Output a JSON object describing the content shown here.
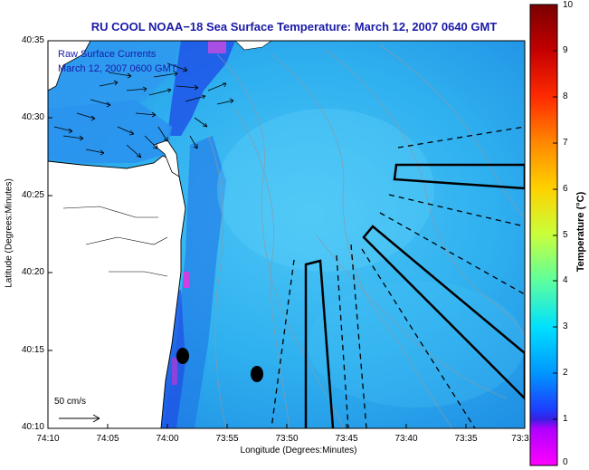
{
  "title": "RU COOL  NOAA−18  Sea Surface Temperature:  March 12, 2007 0640 GMT",
  "axes": {
    "ylabel": "Latitude (Degrees:Minutes)",
    "xlabel": "Longitude (Degrees:Minutes)",
    "yticks": [
      "40:35",
      "40:30",
      "40:25",
      "40:20",
      "40:15",
      "40:10"
    ],
    "xticks": [
      "74:10",
      "74:05",
      "74:00",
      "73:55",
      "73:50",
      "73:45",
      "73:40",
      "73:35",
      "73:3"
    ]
  },
  "colorbar": {
    "label": "Temperature (°C)",
    "ticks": [
      "10",
      "9",
      "8",
      "7",
      "6",
      "5",
      "4",
      "3",
      "2",
      "1",
      "0"
    ],
    "colors": [
      "#7a0000",
      "#c40000",
      "#ff2a00",
      "#ff8800",
      "#ffd200",
      "#c8ff3c",
      "#5cff9e",
      "#00e0ff",
      "#0096ff",
      "#1e3cff",
      "#3a1fe0",
      "#ff00ff"
    ]
  },
  "overlay": {
    "line1": "Raw Surface Currents",
    "line2": "March 12, 2007 0600 GMT",
    "scale_label": "50 cm/s"
  },
  "colors": {
    "title": "#1a1aa8",
    "ocean": "#2aa8ec",
    "land": "#ffffff",
    "transect": "#000000"
  }
}
